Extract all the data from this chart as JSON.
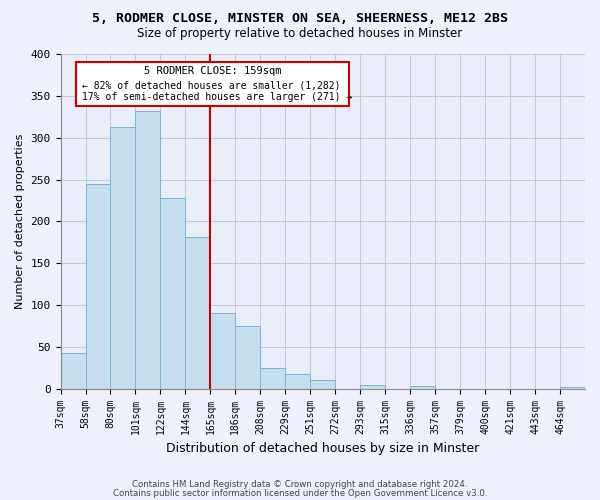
{
  "title": "5, RODMER CLOSE, MINSTER ON SEA, SHEERNESS, ME12 2BS",
  "subtitle": "Size of property relative to detached houses in Minster",
  "xlabel": "Distribution of detached houses by size in Minster",
  "ylabel": "Number of detached properties",
  "bin_labels": [
    "37sqm",
    "58sqm",
    "80sqm",
    "101sqm",
    "122sqm",
    "144sqm",
    "165sqm",
    "186sqm",
    "208sqm",
    "229sqm",
    "251sqm",
    "272sqm",
    "293sqm",
    "315sqm",
    "336sqm",
    "357sqm",
    "379sqm",
    "400sqm",
    "421sqm",
    "443sqm",
    "464sqm"
  ],
  "bar_heights": [
    43,
    245,
    313,
    332,
    228,
    181,
    91,
    75,
    25,
    18,
    10,
    0,
    5,
    0,
    3,
    0,
    0,
    0,
    0,
    0,
    2
  ],
  "bar_color": "#c5dff0",
  "bar_edge_color": "#7ab3d4",
  "marker_label": "5 RODMER CLOSE: 159sqm",
  "marker_line_color": "#cc0000",
  "annotation_line1": "← 82% of detached houses are smaller (1,282)",
  "annotation_line2": "17% of semi-detached houses are larger (271) →",
  "ylim": [
    0,
    400
  ],
  "yticks": [
    0,
    50,
    100,
    150,
    200,
    250,
    300,
    350,
    400
  ],
  "footer1": "Contains HM Land Registry data © Crown copyright and database right 2024.",
  "footer2": "Contains public sector information licensed under the Open Government Licence v3.0.",
  "background_color": "#eef1fb",
  "plot_bg_color": "#e8edf8",
  "grid_color": "#c0c8e0"
}
